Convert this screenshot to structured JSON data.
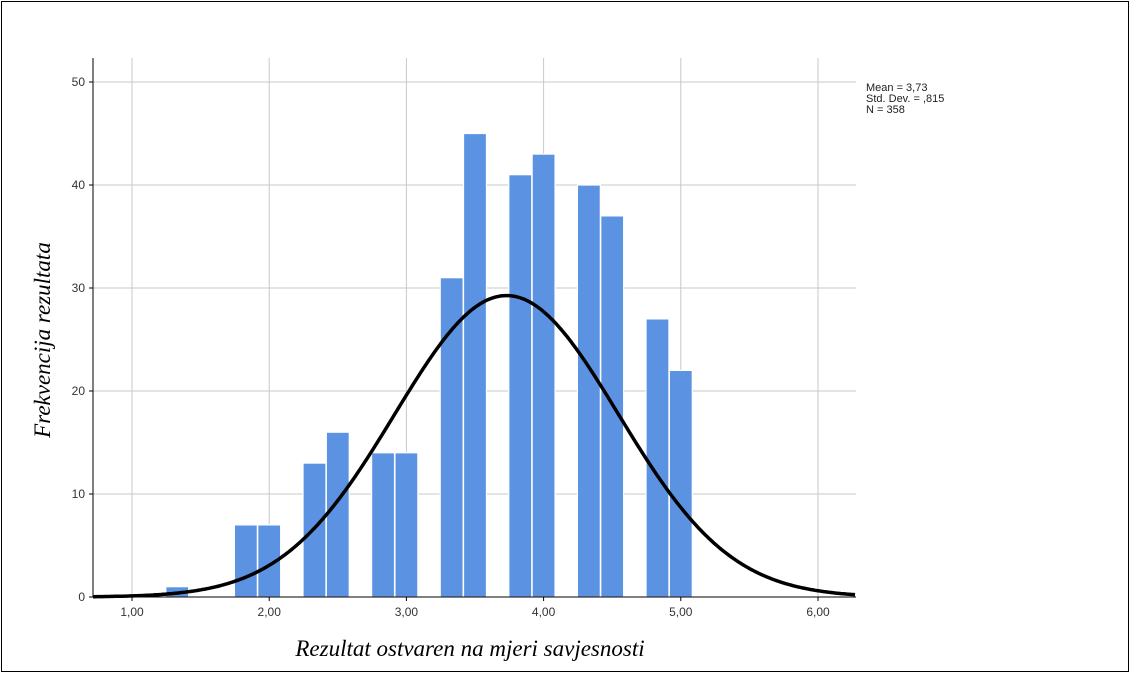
{
  "chart_data": {
    "type": "bar",
    "subtype": "histogram",
    "xlabel": "Rezultat ostvaren na mjeri savjesnosti",
    "ylabel": "Frekvencija rezultata",
    "xlim": [
      0.75,
      6.28
    ],
    "ylim": [
      0,
      52
    ],
    "x_ticks": [
      1,
      2,
      3,
      4,
      5,
      6
    ],
    "x_tick_labels": [
      "1,00",
      "2,00",
      "3,00",
      "4,00",
      "5,00",
      "6,00"
    ],
    "y_ticks": [
      0,
      10,
      20,
      30,
      40,
      50
    ],
    "y_tick_labels": [
      "0",
      "10",
      "20",
      "30",
      "40",
      "50"
    ],
    "bin_width": 0.167,
    "bins": [
      {
        "x": 1.33,
        "count": 1
      },
      {
        "x": 1.83,
        "count": 7
      },
      {
        "x": 2.0,
        "count": 7
      },
      {
        "x": 2.33,
        "count": 13
      },
      {
        "x": 2.5,
        "count": 16
      },
      {
        "x": 2.83,
        "count": 14
      },
      {
        "x": 3.0,
        "count": 14
      },
      {
        "x": 3.33,
        "count": 31
      },
      {
        "x": 3.5,
        "count": 45
      },
      {
        "x": 3.83,
        "count": 41
      },
      {
        "x": 4.0,
        "count": 43
      },
      {
        "x": 4.33,
        "count": 40
      },
      {
        "x": 4.5,
        "count": 37
      },
      {
        "x": 4.83,
        "count": 27
      },
      {
        "x": 5.0,
        "count": 22
      }
    ],
    "normal_curve": {
      "mean": 3.73,
      "std": 0.815,
      "n": 358
    },
    "stats": [
      "Mean = 3,73",
      "Std. Dev. = ,815",
      "N = 358"
    ],
    "grid": true,
    "bar_color": "#5B93E2",
    "curve_color": "#000000"
  }
}
